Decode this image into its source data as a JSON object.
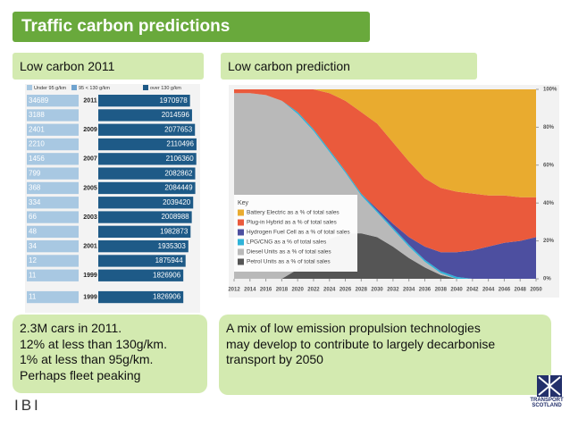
{
  "header": {
    "title": "Traffic carbon predictions"
  },
  "left_panel": {
    "title": "Low carbon 2011",
    "text": [
      "2.3M cars in 2011.",
      "12% at less than 130g/km.",
      "1% at less than 95g/km.",
      "Perhaps fleet peaking"
    ]
  },
  "right_panel": {
    "title": "Low carbon prediction",
    "text": [
      "A mix of low emission propulsion technologies",
      "may develop to contribute to largely decarbonise",
      "transport by 2050"
    ]
  },
  "logos": {
    "left": "IBI",
    "right": [
      "TRANSPORT",
      "SCOTLAND"
    ]
  },
  "chart_data": [
    {
      "type": "bar",
      "orientation": "horizontal",
      "categories": [
        "2011",
        null,
        "2009",
        null,
        "2007",
        null,
        "2005",
        null,
        "2003",
        null,
        "2001",
        null,
        "1999",
        "1999"
      ],
      "series": [
        {
          "name": "Under 95 g/km",
          "color": "#a8c8e2",
          "values": [
            34689,
            3188,
            2401,
            2210,
            1456,
            799,
            368,
            334,
            66,
            48,
            34,
            12,
            11,
            11
          ]
        },
        {
          "name": "95 < 130 g/km",
          "color": "#6fa3cf",
          "values": [
            null,
            null,
            null,
            null,
            null,
            null,
            null,
            null,
            null,
            null,
            null,
            null,
            null,
            null
          ]
        },
        {
          "name": "over 130 g/km",
          "color": "#1e5a87",
          "values": [
            1970978,
            2014596,
            2077653,
            2110496,
            2106360,
            2082862,
            2084449,
            2039420,
            2008988,
            1982873,
            1935303,
            1875944,
            1826906,
            1826906
          ]
        }
      ],
      "xlim": [
        0,
        2150000
      ]
    },
    {
      "type": "stacked_area",
      "x": [
        2012,
        2014,
        2016,
        2018,
        2020,
        2022,
        2024,
        2026,
        2028,
        2030,
        2032,
        2034,
        2036,
        2038,
        2040,
        2042,
        2044,
        2046,
        2048,
        2050
      ],
      "xlim": [
        2012,
        2050
      ],
      "xticks": [
        2012,
        2014,
        2016,
        2018,
        2020,
        2022,
        2024,
        2026,
        2028,
        2030,
        2032,
        2034,
        2036,
        2038,
        2040,
        2042,
        2044,
        2046,
        2048,
        2050
      ],
      "ylim": [
        0,
        100
      ],
      "yticks": [
        {
          "value": 0,
          "label": "0%"
        },
        {
          "value": 20,
          "label": "20%"
        },
        {
          "value": 40,
          "label": "40%"
        },
        {
          "value": 60,
          "label": "60%"
        },
        {
          "value": 80,
          "label": "80%"
        },
        {
          "value": 100,
          "label": "100%"
        }
      ],
      "legend_title": "Key",
      "legend": "lower left",
      "series": [
        {
          "name": "Battery Electric as a % of total sales",
          "color": "#e9ab2f",
          "values": [
            0,
            0,
            0,
            0,
            0,
            0,
            2,
            6,
            12,
            18,
            28,
            38,
            47,
            52,
            54,
            55,
            56,
            56,
            57,
            57
          ]
        },
        {
          "name": "Plug-in Hybrid as a % of total sales",
          "color": "#ea5a3c",
          "values": [
            2,
            2,
            3,
            6,
            12,
            21,
            30,
            37,
            43,
            45,
            43,
            40,
            36,
            34,
            32,
            30,
            27,
            25,
            23,
            21
          ]
        },
        {
          "name": "Hydrogen Fuel Cell as a % of total sales",
          "color": "#4d4fa0",
          "values": [
            0,
            0,
            0,
            0,
            0,
            0,
            0,
            0,
            0,
            1,
            2,
            4,
            7,
            10,
            13,
            15,
            17,
            19,
            20,
            22
          ]
        },
        {
          "name": "LPG/CNG as a % of total sales",
          "color": "#2fb3d8",
          "values": [
            0,
            0,
            0,
            0,
            1,
            1,
            1,
            1,
            1,
            1,
            1,
            1,
            1,
            1,
            1,
            0,
            0,
            0,
            0,
            0
          ]
        },
        {
          "name": "Diesel Units as a % of total sales",
          "color": "#b9b9b9",
          "values": [
            98,
            98,
            97,
            94,
            82,
            64,
            46,
            32,
            20,
            13,
            9,
            6,
            3,
            1,
            0,
            0,
            0,
            0,
            0,
            0
          ]
        },
        {
          "name": "Petrol Units as a % of total sales",
          "color": "#555555",
          "values": [
            0,
            0,
            0,
            0,
            5,
            14,
            21,
            24,
            24,
            22,
            17,
            11,
            6,
            2,
            0,
            0,
            0,
            0,
            0,
            0
          ]
        }
      ]
    }
  ]
}
